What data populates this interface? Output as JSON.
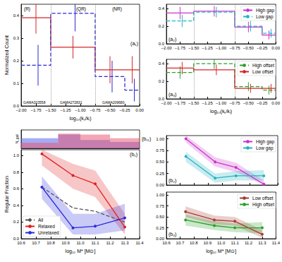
{
  "chart_data": [
    {
      "type": "histogram",
      "panel_label": "(a₁)",
      "xlabel": "log₁₀(kₛ/kₗ)",
      "ylabel": "Normalized Count",
      "bins": [
        -2,
        -1.5,
        -0.75,
        -0.25,
        0
      ],
      "series": [
        {
          "color": "#d62728",
          "line_style": "solid",
          "values": [
            0.39,
            0.26,
            0.16,
            0.16
          ],
          "errors": [
            0.07,
            0.05,
            0.06,
            0.06
          ]
        },
        {
          "color": "#2b2bd6",
          "line_style": "dashed",
          "values": [
            0.18,
            0.41,
            0.13,
            0.07
          ],
          "errors": [
            0.09,
            0.08,
            0.07,
            0.05
          ]
        }
      ],
      "xlim": [
        -2,
        0
      ],
      "xticks": [
        {
          "value": -2,
          "label": "−2.00"
        },
        {
          "value": -1.75,
          "label": "−1.75"
        },
        {
          "value": -1.5,
          "label": "−1.50"
        },
        {
          "value": -1.25,
          "label": "−1.25"
        },
        {
          "value": -1,
          "label": "−1.00"
        },
        {
          "value": -0.75,
          "label": "−0.75"
        },
        {
          "value": -0.5,
          "label": "−0.50"
        },
        {
          "value": -0.25,
          "label": "−0.25"
        },
        {
          "value": 0,
          "label": "0.00"
        }
      ],
      "ylim": [
        0,
        0.45
      ],
      "yticks": [
        {
          "value": 0,
          "label": "0.0"
        },
        0.1,
        0.2,
        0.3,
        0.4
      ],
      "vlines": [
        -1.5,
        -0.75
      ],
      "annotations": [
        "(R)",
        "(QR)",
        "(NR)",
        "GAMA323558",
        "GAMA272831",
        "GAMA209680"
      ]
    },
    {
      "type": "histogram",
      "panel_label": "(a₂)",
      "bins": [
        -2,
        -1.5,
        -0.75,
        -0.25,
        0
      ],
      "series": [
        {
          "name": "High gap",
          "color": "#cc33cc",
          "line_style": "solid",
          "values": [
            0.35,
            0.37,
            0.19,
            0.1
          ],
          "errors": [
            0.07,
            0.06,
            0.06,
            0.05
          ]
        },
        {
          "name": "Low gap",
          "color": "#22b5c0",
          "line_style": "dashed",
          "values": [
            0.26,
            0.36,
            0.2,
            0.12
          ],
          "errors": [
            0.07,
            0.06,
            0.06,
            0.05
          ]
        }
      ],
      "xlim": [
        -2,
        0
      ],
      "xticks": [
        {
          "value": -2,
          "label": "−2.00"
        },
        {
          "value": -1.75,
          "label": "−1.75"
        },
        {
          "value": -1.5,
          "label": "−1.50"
        },
        {
          "value": -1.25,
          "label": "−1.25"
        },
        {
          "value": -1,
          "label": "−1.00"
        },
        {
          "value": -0.75,
          "label": "−0.75"
        },
        {
          "value": -0.5,
          "label": "−0.50"
        },
        {
          "value": -0.25,
          "label": "−0.25"
        },
        {
          "value": 0,
          "label": "0.00"
        }
      ],
      "ylim": [
        0,
        0.45
      ],
      "yticks": [
        {
          "value": 0,
          "label": "0.0"
        },
        0.2,
        0.4
      ],
      "vlines": [
        -1.5,
        -0.75
      ],
      "legend": "upper right"
    },
    {
      "type": "histogram",
      "panel_label": "(a₃)",
      "xlabel": "log₁₀(kₛ/kₗ)",
      "bins": [
        -2,
        -1.5,
        -0.75,
        -0.25,
        0
      ],
      "series": [
        {
          "name": "High offset",
          "color": "#2ca02c",
          "line_style": "dashed",
          "values": [
            0.3,
            0.4,
            0.14,
            0.1
          ],
          "errors": [
            0.07,
            0.06,
            0.05,
            0.05
          ]
        },
        {
          "name": "Low offset",
          "color": "#d62728",
          "line_style": "solid",
          "values": [
            0.35,
            0.33,
            0.12,
            0.12
          ],
          "errors": [
            0.07,
            0.06,
            0.05,
            0.05
          ]
        }
      ],
      "xlim": [
        -2,
        0
      ],
      "xticks": [
        {
          "value": -2,
          "label": "−2.00"
        },
        {
          "value": -1.75,
          "label": "−1.75"
        },
        {
          "value": -1.5,
          "label": "−1.50"
        },
        {
          "value": -1.25,
          "label": "−1.25"
        },
        {
          "value": -1,
          "label": "−1.00"
        },
        {
          "value": -0.75,
          "label": "−0.75"
        },
        {
          "value": -0.5,
          "label": "−0.50"
        },
        {
          "value": -0.25,
          "label": "−0.25"
        },
        {
          "value": 0,
          "label": "0.00"
        }
      ],
      "ylim": [
        0,
        0.45
      ],
      "yticks": [
        {
          "value": 0,
          "label": "0.0"
        },
        0.2,
        0.4
      ],
      "vlines": [
        -1.5,
        -0.75
      ],
      "legend": "upper right"
    },
    {
      "type": "histogram",
      "panel_label": "(b₁₁)",
      "ylabel": "N_gal",
      "bins": [
        10.6,
        10.85,
        11.0,
        11.2,
        11.4
      ],
      "series": [
        {
          "type": "bar",
          "color": "#4a5ae8",
          "values": [
            0.55,
            0.75,
            0.45,
            0.35
          ]
        },
        {
          "type": "bar",
          "color": "#e8506a",
          "values": [
            0.3,
            0.8,
            0.75,
            0.55
          ]
        }
      ],
      "xlim": [
        10.6,
        11.4
      ],
      "ylim": [
        0,
        1
      ],
      "tick_labels": false
    },
    {
      "type": "line",
      "panel_label": "(b₁)",
      "xlabel": "log₁₀ M* [M⊙]",
      "ylabel": "Regular Fraction",
      "x": [
        10.74,
        10.95,
        11.1,
        11.3
      ],
      "series": [
        {
          "name": "All",
          "color": "#555555",
          "line_style": "dashed",
          "values": [
            0.62,
            0.37,
            0.33,
            0.2
          ]
        },
        {
          "name": "Relaxed",
          "color": "#e02020",
          "line_style": "solid",
          "marker": "circle",
          "values": [
            1.02,
            0.76,
            0.66,
            0.14
          ],
          "lower": [
            0.88,
            0.6,
            0.5,
            0.05
          ],
          "upper": [
            1.07,
            0.9,
            0.82,
            0.3
          ]
        },
        {
          "name": "Unrelaxed",
          "color": "#2a2ae0",
          "line_style": "solid",
          "marker": "circle",
          "values": [
            0.62,
            0.13,
            0.15,
            0.25
          ],
          "lower": [
            0.48,
            0.05,
            0.05,
            0.1
          ],
          "upper": [
            0.75,
            0.3,
            0.3,
            0.42
          ]
        }
      ],
      "xlim": [
        10.6,
        11.4
      ],
      "xticks": [
        10.6,
        10.7,
        10.8,
        10.9,
        {
          "value": 11,
          "label": "11.0"
        },
        11.1,
        11.2,
        11.3,
        11.4
      ],
      "ylim": [
        0,
        1.07
      ],
      "yticks": [
        {
          "value": 0,
          "label": "0.0"
        },
        0.2,
        0.4,
        0.6,
        0.8,
        {
          "value": 1,
          "label": "1.0"
        }
      ],
      "legend": "lower left"
    },
    {
      "type": "line",
      "panel_label": "(b₂)",
      "x": [
        10.74,
        10.95,
        11.1,
        11.3
      ],
      "series": [
        {
          "name": "High gap",
          "color": "#cc33cc",
          "line_style": "solid",
          "marker": "circle",
          "values": [
            1.0,
            0.5,
            0.38,
            0.02
          ],
          "lower": [
            0.92,
            0.4,
            0.28,
            0.0
          ],
          "upper": [
            1.07,
            0.6,
            0.48,
            0.1
          ]
        },
        {
          "name": "Low gap",
          "color": "#22b5c0",
          "line_style": "solid",
          "marker": "circle",
          "values": [
            0.62,
            0.15,
            0.2,
            0.2
          ],
          "lower": [
            0.5,
            0.05,
            0.1,
            0.1
          ],
          "upper": [
            0.72,
            0.25,
            0.3,
            0.32
          ]
        }
      ],
      "xlim": [
        10.6,
        11.4
      ],
      "xticks": [
        10.6,
        10.7,
        10.8,
        10.9,
        {
          "value": 11,
          "label": "11.0"
        },
        11.1,
        11.2,
        11.3,
        11.4
      ],
      "ylim": [
        0,
        1.07
      ],
      "yticks": [
        {
          "value": 0,
          "label": "0.00"
        },
        0.25,
        {
          "value": 0.5,
          "label": "0.50"
        },
        0.75,
        {
          "value": 1,
          "label": "1.00"
        }
      ],
      "tick_labels": "y",
      "legend": "upper right"
    },
    {
      "type": "line",
      "panel_label": "(b₃)",
      "xlabel": "log₁₀ M* [M⊙]",
      "x": [
        10.74,
        10.95,
        11.1,
        11.3
      ],
      "series": [
        {
          "name": "Low offset",
          "color": "#a83c32",
          "line_style": "solid",
          "marker": "circle",
          "values": [
            0.62,
            0.43,
            0.4,
            0.1
          ],
          "lower": [
            0.5,
            0.33,
            0.3,
            0.02
          ],
          "upper": [
            0.74,
            0.53,
            0.5,
            0.2
          ]
        },
        {
          "name": "High offset",
          "color": "#2ca02c",
          "line_style": "solid",
          "marker": "circle",
          "values": [
            0.43,
            0.3,
            0.25,
            0.25
          ],
          "lower": [
            0.3,
            0.2,
            0.15,
            0.12
          ],
          "upper": [
            0.55,
            0.4,
            0.35,
            0.38
          ]
        }
      ],
      "xlim": [
        10.6,
        11.4
      ],
      "xticks": [
        10.6,
        10.7,
        10.8,
        10.9,
        {
          "value": 11,
          "label": "11.0"
        },
        11.1,
        11.2,
        11.3,
        11.4
      ],
      "ylim": [
        0,
        1.07
      ],
      "yticks": [
        {
          "value": 0,
          "label": "0.00"
        },
        0.25,
        {
          "value": 0.5,
          "label": "0.50"
        },
        0.75,
        {
          "value": 1,
          "label": "1.00"
        }
      ],
      "legend": "upper right"
    }
  ]
}
